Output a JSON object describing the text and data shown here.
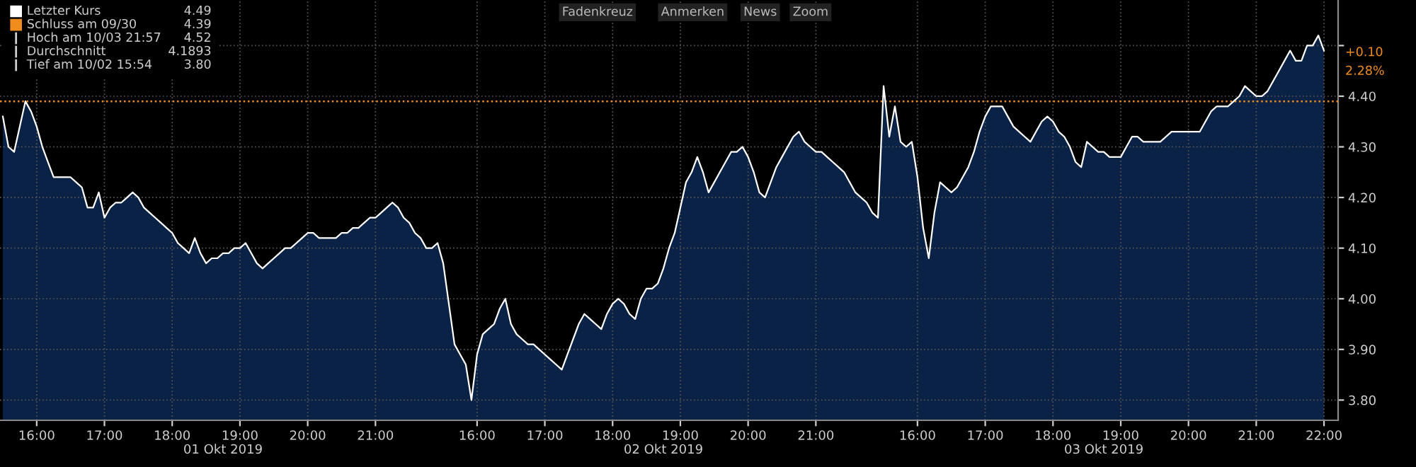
{
  "chart_data": {
    "type": "area",
    "categories": [
      null,
      null,
      null,
      null,
      null,
      null,
      "16:00",
      null,
      null,
      null,
      null,
      null,
      null,
      null,
      null,
      null,
      null,
      null,
      "17:00",
      null,
      null,
      null,
      null,
      null,
      null,
      null,
      null,
      null,
      null,
      null,
      "18:00",
      null,
      null,
      null,
      null,
      null,
      null,
      null,
      null,
      null,
      null,
      null,
      "19:00",
      null,
      null,
      null,
      null,
      null,
      null,
      null,
      null,
      null,
      null,
      null,
      "20:00",
      null,
      null,
      null,
      null,
      null,
      null,
      null,
      null,
      null,
      null,
      null,
      "21:00",
      null,
      null,
      null,
      null,
      null,
      null,
      null,
      null,
      null,
      null,
      null,
      null,
      null,
      null,
      null,
      null,
      null,
      "16:00",
      null,
      null,
      null,
      null,
      null,
      null,
      null,
      null,
      null,
      null,
      null,
      "17:00",
      null,
      null,
      null,
      null,
      null,
      null,
      null,
      null,
      null,
      null,
      null,
      "18:00",
      null,
      null,
      null,
      null,
      null,
      null,
      null,
      null,
      null,
      null,
      null,
      "19:00",
      null,
      null,
      null,
      null,
      null,
      null,
      null,
      null,
      null,
      null,
      null,
      "20:00",
      null,
      null,
      null,
      null,
      null,
      null,
      null,
      null,
      null,
      null,
      null,
      "21:00",
      null,
      null,
      null,
      null,
      null,
      null,
      null,
      null,
      null,
      null,
      null,
      null,
      null,
      null,
      null,
      null,
      null,
      "16:00",
      null,
      null,
      null,
      null,
      null,
      null,
      null,
      null,
      null,
      null,
      null,
      "17:00",
      null,
      null,
      null,
      null,
      null,
      null,
      null,
      null,
      null,
      null,
      null,
      "18:00",
      null,
      null,
      null,
      null,
      null,
      null,
      null,
      null,
      null,
      null,
      null,
      "19:00",
      null,
      null,
      null,
      null,
      null,
      null,
      null,
      null,
      null,
      null,
      null,
      "20:00",
      null,
      null,
      null,
      null,
      null,
      null,
      null,
      null,
      null,
      null,
      null,
      "21:00",
      null,
      null,
      null,
      null,
      null,
      null,
      null,
      null,
      null,
      null,
      null,
      "22:00"
    ],
    "series": [
      {
        "name": "Letzter Kurs",
        "color": "#ffffff",
        "values": [
          4.36,
          4.3,
          4.29,
          4.34,
          4.39,
          4.37,
          4.34,
          4.3,
          4.27,
          4.24,
          4.24,
          4.24,
          4.24,
          4.23,
          4.22,
          4.18,
          4.18,
          4.21,
          4.16,
          4.18,
          4.19,
          4.19,
          4.2,
          4.21,
          4.2,
          4.18,
          4.17,
          4.16,
          4.15,
          4.14,
          4.13,
          4.11,
          4.1,
          4.09,
          4.12,
          4.09,
          4.07,
          4.08,
          4.08,
          4.09,
          4.09,
          4.1,
          4.1,
          4.11,
          4.09,
          4.07,
          4.06,
          4.07,
          4.08,
          4.09,
          4.1,
          4.1,
          4.11,
          4.12,
          4.13,
          4.13,
          4.12,
          4.12,
          4.12,
          4.12,
          4.13,
          4.13,
          4.14,
          4.14,
          4.15,
          4.16,
          4.16,
          4.17,
          4.18,
          4.19,
          4.18,
          4.16,
          4.15,
          4.13,
          4.12,
          4.1,
          4.1,
          4.11,
          4.07,
          3.99,
          3.91,
          3.89,
          3.87,
          3.8,
          3.89,
          3.93,
          3.94,
          3.95,
          3.98,
          4.0,
          3.95,
          3.93,
          3.92,
          3.91,
          3.91,
          3.9,
          3.89,
          3.88,
          3.87,
          3.86,
          3.89,
          3.92,
          3.95,
          3.97,
          3.96,
          3.95,
          3.94,
          3.97,
          3.99,
          4.0,
          3.99,
          3.97,
          3.96,
          4.0,
          4.02,
          4.02,
          4.03,
          4.06,
          4.1,
          4.13,
          4.18,
          4.23,
          4.25,
          4.28,
          4.25,
          4.21,
          4.23,
          4.25,
          4.27,
          4.29,
          4.29,
          4.3,
          4.28,
          4.25,
          4.21,
          4.2,
          4.23,
          4.26,
          4.28,
          4.3,
          4.32,
          4.33,
          4.31,
          4.3,
          4.29,
          4.29,
          4.28,
          4.27,
          4.26,
          4.25,
          4.23,
          4.21,
          4.2,
          4.19,
          4.17,
          4.16,
          4.42,
          4.32,
          4.38,
          4.31,
          4.3,
          4.31,
          4.24,
          4.14,
          4.08,
          4.17,
          4.23,
          4.22,
          4.21,
          4.22,
          4.24,
          4.26,
          4.29,
          4.33,
          4.36,
          4.38,
          4.38,
          4.38,
          4.36,
          4.34,
          4.33,
          4.32,
          4.31,
          4.33,
          4.35,
          4.36,
          4.35,
          4.33,
          4.32,
          4.3,
          4.27,
          4.26,
          4.31,
          4.3,
          4.29,
          4.29,
          4.28,
          4.28,
          4.28,
          4.3,
          4.32,
          4.32,
          4.31,
          4.31,
          4.31,
          4.31,
          4.32,
          4.33,
          4.33,
          4.33,
          4.33,
          4.33,
          4.33,
          4.35,
          4.37,
          4.38,
          4.38,
          4.38,
          4.39,
          4.4,
          4.42,
          4.41,
          4.4,
          4.4,
          4.41,
          4.43,
          4.45,
          4.47,
          4.49,
          4.47,
          4.47,
          4.5,
          4.5,
          4.52,
          4.49
        ]
      }
    ],
    "ylim": [
      3.76,
      4.59
    ],
    "yticks": [
      {
        "value": 3.8,
        "label": "3.80"
      },
      {
        "value": 3.9,
        "label": "3.90"
      },
      {
        "value": 4.0,
        "label": "4.00"
      },
      {
        "value": 4.1,
        "label": "4.10"
      },
      {
        "value": 4.2,
        "label": "4.20"
      },
      {
        "value": 4.3,
        "label": "4.30"
      },
      {
        "value": 4.4,
        "label": "4.40"
      },
      {
        "value": 4.5,
        "label": null
      }
    ],
    "grid": true,
    "ref_lines": [
      {
        "axis": "y",
        "value": 4.39,
        "label": "Schluss am 09/30",
        "color": "#f08c1e",
        "line_style": "dotted"
      }
    ],
    "legend": "top left",
    "annotations": [
      "4.49",
      "4.39",
      "Hoch am 10/03 21:57",
      "4.52",
      "Durchschnitt",
      "4.1893",
      "Tief am 10/02 15:54",
      "3.80",
      "Fadenkreuz",
      "Anmerken",
      "News",
      "Zoom",
      "+0.10",
      "2.28%",
      "01 Okt 2019",
      "02 Okt 2019",
      "03 Okt 2019"
    ]
  }
}
